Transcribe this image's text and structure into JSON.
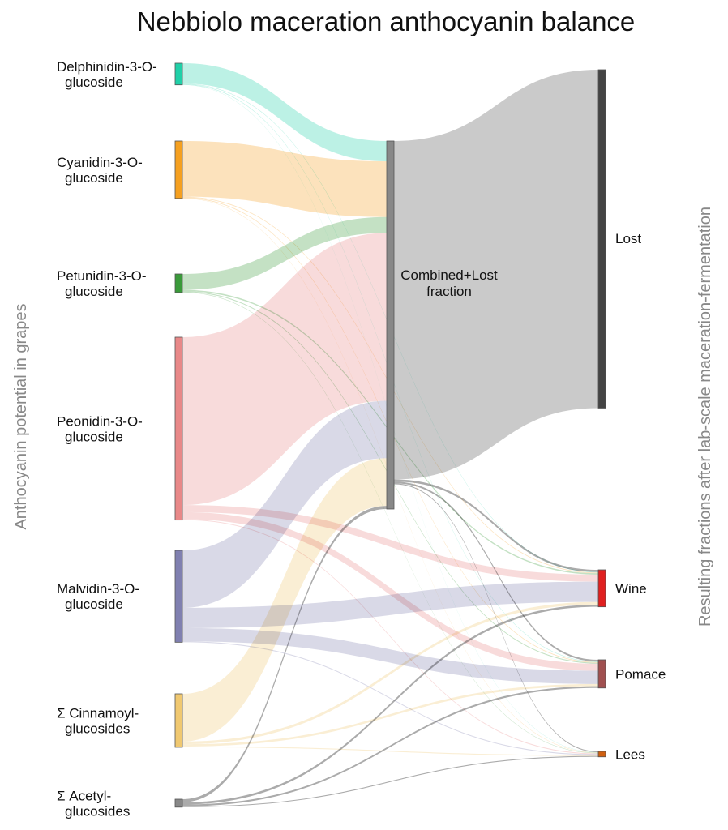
{
  "title": "Nebbiolo maceration anthocyanin balance",
  "left_axis_label": "Anthocyanin potential in grapes",
  "right_axis_label": "Resulting fractions after lab-scale maceration-fermentation",
  "colors": {
    "delphinidin": "#20d0a8",
    "cyanidin": "#f5a020",
    "petunidin": "#3a9a3a",
    "peonidin": "#e88888",
    "malvidin": "#8080b0",
    "cinnamoyl": "#f0c870",
    "acetyl": "#888888",
    "combined": "#888888",
    "lost": "#444444",
    "wine": "#e02020",
    "pomace": "#a05050",
    "lees": "#d06010"
  },
  "nodes": {
    "source": [
      {
        "id": "delphinidin",
        "line1": "Delphinidin-3-O-",
        "line2": "glucoside"
      },
      {
        "id": "cyanidin",
        "line1": "Cyanidin-3-O-",
        "line2": "glucoside"
      },
      {
        "id": "petunidin",
        "line1": "Petunidin-3-O-",
        "line2": "glucoside"
      },
      {
        "id": "peonidin",
        "line1": "Peonidin-3-O-",
        "line2": "glucoside"
      },
      {
        "id": "malvidin",
        "line1": "Malvidin-3-O-",
        "line2": "glucoside"
      },
      {
        "id": "cinnamoyl",
        "line1": "Σ Cinnamoyl-",
        "line2": "glucosides"
      },
      {
        "id": "acetyl",
        "line1": "Σ Acetyl-",
        "line2": "glucosides"
      }
    ],
    "middle": [
      {
        "id": "combined",
        "line1": "Combined+Lost",
        "line2": "fraction"
      }
    ],
    "target": [
      {
        "id": "lost",
        "line1": "Lost",
        "line2": ""
      },
      {
        "id": "wine",
        "line1": "Wine",
        "line2": ""
      },
      {
        "id": "pomace",
        "line1": "Pomace",
        "line2": ""
      },
      {
        "id": "lees",
        "line1": "Lees",
        "line2": ""
      }
    ]
  },
  "chart_data": {
    "type": "sankey",
    "title": "Nebbiolo maceration anthocyanin balance",
    "units": "relative anthocyanin amount (estimated from band widths)",
    "flows": [
      {
        "source": "delphinidin",
        "target": "combined",
        "value": 23
      },
      {
        "source": "delphinidin",
        "target": "wine",
        "value": 0.6
      },
      {
        "source": "delphinidin",
        "target": "pomace",
        "value": 0.6
      },
      {
        "source": "delphinidin",
        "target": "lees",
        "value": 0.3
      },
      {
        "source": "cyanidin",
        "target": "combined",
        "value": 63
      },
      {
        "source": "cyanidin",
        "target": "wine",
        "value": 0.8
      },
      {
        "source": "cyanidin",
        "target": "pomace",
        "value": 0.8
      },
      {
        "source": "cyanidin",
        "target": "lees",
        "value": 0.4
      },
      {
        "source": "petunidin",
        "target": "combined",
        "value": 18
      },
      {
        "source": "petunidin",
        "target": "wine",
        "value": 1.5
      },
      {
        "source": "petunidin",
        "target": "pomace",
        "value": 1.0
      },
      {
        "source": "petunidin",
        "target": "lees",
        "value": 0.5
      },
      {
        "source": "peonidin",
        "target": "combined",
        "value": 190
      },
      {
        "source": "peonidin",
        "target": "wine",
        "value": 8
      },
      {
        "source": "peonidin",
        "target": "pomace",
        "value": 8
      },
      {
        "source": "peonidin",
        "target": "lees",
        "value": 1
      },
      {
        "source": "malvidin",
        "target": "combined",
        "value": 65
      },
      {
        "source": "malvidin",
        "target": "wine",
        "value": 23
      },
      {
        "source": "malvidin",
        "target": "pomace",
        "value": 15
      },
      {
        "source": "malvidin",
        "target": "lees",
        "value": 1
      },
      {
        "source": "cinnamoyl",
        "target": "combined",
        "value": 54
      },
      {
        "source": "cinnamoyl",
        "target": "wine",
        "value": 3
      },
      {
        "source": "cinnamoyl",
        "target": "pomace",
        "value": 2.5
      },
      {
        "source": "cinnamoyl",
        "target": "lees",
        "value": 1
      },
      {
        "source": "acetyl",
        "target": "combined",
        "value": 3.5
      },
      {
        "source": "acetyl",
        "target": "wine",
        "value": 2.5
      },
      {
        "source": "acetyl",
        "target": "pomace",
        "value": 2
      },
      {
        "source": "acetyl",
        "target": "lees",
        "value": 1
      },
      {
        "source": "combined",
        "target": "lost",
        "value": 383
      },
      {
        "source": "combined",
        "target": "wine",
        "value": 2.5
      },
      {
        "source": "combined",
        "target": "pomace",
        "value": 2
      },
      {
        "source": "combined",
        "target": "lees",
        "value": 1
      }
    ]
  }
}
